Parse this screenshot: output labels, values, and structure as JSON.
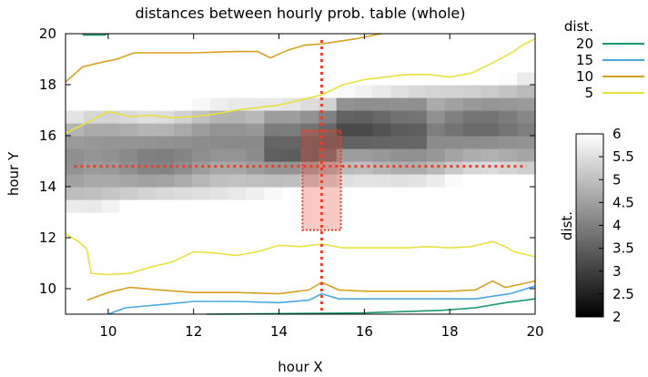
{
  "chart_data": {
    "type": "heatmap",
    "title": "distances between hourly prob. table (whole)",
    "xlabel": "hour X",
    "ylabel": "hour Y",
    "xlim": [
      9,
      20
    ],
    "ylim": [
      9,
      20
    ],
    "x_ticks": [
      "10",
      "12",
      "14",
      "16",
      "18",
      "20"
    ],
    "y_ticks": [
      "10",
      "12",
      "14",
      "16",
      "18",
      "20"
    ],
    "legend": {
      "title": "dist.",
      "placement": "top-right",
      "entries": [
        {
          "label": "20",
          "color": "#1a9a6a"
        },
        {
          "label": "15",
          "color": "#4aa8e0"
        },
        {
          "label": "10",
          "color": "#d8a020"
        },
        {
          "label": "5",
          "color": "#e8e040"
        }
      ]
    },
    "colorbar": {
      "label": "dist.",
      "range": [
        2,
        6
      ],
      "ticks": [
        "6",
        "5.5",
        "5",
        "4.5",
        "4",
        "3.5",
        "3",
        "2.5",
        "2"
      ],
      "low_color": "#000000",
      "high_color": "#ffffff"
    },
    "highlight": {
      "color": "#e8402a",
      "x": 15,
      "y": 14.8,
      "box_x": [
        14.55,
        15.45
      ],
      "box_y": [
        12.3,
        16.2
      ]
    },
    "contours": [
      {
        "level": "20",
        "color": "#1a9a6a",
        "segments": [
          [
            [
              9.4,
              19.95
            ],
            [
              9.9,
              19.95
            ],
            [
              10.0,
              20.0
            ]
          ],
          [
            [
              12.3,
              9.0
            ],
            [
              16.0,
              9.05
            ],
            [
              17.8,
              9.15
            ],
            [
              18.6,
              9.25
            ],
            [
              19.3,
              9.45
            ],
            [
              20.0,
              9.6
            ]
          ]
        ]
      },
      {
        "level": "15",
        "color": "#4aa8e0",
        "segments": [
          [
            [
              10.0,
              9.0
            ],
            [
              10.4,
              9.25
            ],
            [
              11.4,
              9.4
            ],
            [
              12.0,
              9.5
            ],
            [
              13.0,
              9.5
            ],
            [
              14.0,
              9.45
            ],
            [
              14.7,
              9.55
            ],
            [
              15.0,
              9.8
            ],
            [
              15.4,
              9.6
            ],
            [
              16.4,
              9.6
            ],
            [
              18.6,
              9.6
            ],
            [
              19.4,
              9.8
            ],
            [
              20.0,
              10.1
            ]
          ]
        ]
      },
      {
        "level": "10",
        "color": "#d8a020",
        "segments": [
          [
            [
              9.0,
              18.1
            ],
            [
              9.4,
              18.7
            ],
            [
              9.9,
              18.9
            ],
            [
              10.2,
              19.0
            ],
            [
              10.6,
              19.25
            ],
            [
              12.0,
              19.25
            ],
            [
              13.0,
              19.3
            ],
            [
              13.5,
              19.3
            ],
            [
              13.8,
              19.05
            ],
            [
              14.2,
              19.35
            ],
            [
              14.6,
              19.55
            ],
            [
              15.0,
              19.6
            ],
            [
              15.2,
              19.65
            ],
            [
              15.8,
              19.8
            ],
            [
              16.4,
              20.0
            ]
          ],
          [
            [
              9.5,
              9.55
            ],
            [
              10.0,
              9.85
            ],
            [
              10.5,
              10.05
            ],
            [
              11.2,
              9.95
            ],
            [
              12.0,
              9.85
            ],
            [
              13.0,
              9.85
            ],
            [
              14.0,
              9.8
            ],
            [
              14.7,
              9.95
            ],
            [
              15.0,
              10.25
            ],
            [
              15.4,
              9.95
            ],
            [
              16.0,
              9.9
            ],
            [
              18.0,
              9.9
            ],
            [
              18.6,
              9.95
            ],
            [
              19.0,
              10.3
            ],
            [
              19.3,
              10.05
            ],
            [
              20.0,
              10.3
            ]
          ]
        ]
      },
      {
        "level": "5",
        "color": "#e8e040",
        "segments": [
          [
            [
              9.0,
              16.1
            ],
            [
              9.5,
              16.5
            ],
            [
              10.0,
              16.95
            ],
            [
              10.5,
              16.75
            ],
            [
              11.0,
              16.8
            ],
            [
              11.5,
              16.7
            ],
            [
              12.0,
              16.75
            ],
            [
              12.5,
              16.85
            ],
            [
              13.0,
              17.0
            ],
            [
              13.5,
              17.1
            ],
            [
              14.0,
              17.2
            ],
            [
              14.5,
              17.4
            ],
            [
              15.0,
              17.6
            ],
            [
              15.5,
              18.0
            ],
            [
              16.0,
              18.2
            ],
            [
              16.5,
              18.3
            ],
            [
              17.0,
              18.4
            ],
            [
              17.5,
              18.4
            ],
            [
              18.0,
              18.3
            ],
            [
              18.5,
              18.45
            ],
            [
              19.0,
              18.85
            ],
            [
              19.5,
              19.3
            ],
            [
              19.7,
              19.55
            ],
            [
              20.0,
              19.8
            ]
          ],
          [
            [
              9.0,
              12.15
            ],
            [
              9.3,
              11.85
            ],
            [
              9.5,
              11.55
            ],
            [
              9.6,
              10.6
            ],
            [
              10.0,
              10.55
            ],
            [
              10.5,
              10.6
            ],
            [
              11.0,
              10.85
            ],
            [
              11.5,
              11.05
            ],
            [
              12.0,
              11.45
            ],
            [
              12.5,
              11.4
            ],
            [
              13.0,
              11.3
            ],
            [
              13.5,
              11.45
            ],
            [
              14.0,
              11.7
            ],
            [
              14.5,
              11.65
            ],
            [
              15.0,
              11.75
            ],
            [
              15.5,
              11.6
            ],
            [
              16.0,
              11.6
            ],
            [
              17.0,
              11.6
            ],
            [
              17.5,
              11.65
            ],
            [
              18.0,
              11.6
            ],
            [
              18.5,
              11.65
            ],
            [
              19.0,
              11.85
            ],
            [
              19.3,
              11.65
            ],
            [
              19.5,
              11.45
            ],
            [
              20.0,
              11.25
            ]
          ]
        ]
      }
    ]
  }
}
